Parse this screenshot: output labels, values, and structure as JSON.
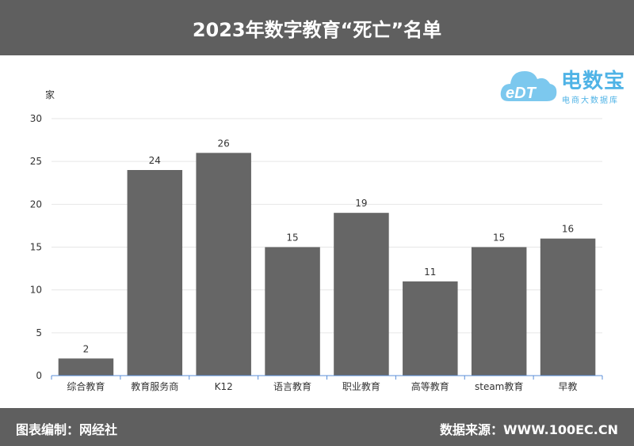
{
  "header": {
    "title": "2023年数字教育“死亡”名单"
  },
  "logo": {
    "name": "电数宝",
    "subtitle": "电商大数据库",
    "mark": "eDT"
  },
  "footer": {
    "left": "图表编制：网经社",
    "right": "数据来源：WWW.100EC.CN"
  },
  "colors": {
    "bar": "#666666",
    "header": "#5f5f5f",
    "logo": "#4fb3e6",
    "axis": "#5b8fd8"
  },
  "chart_data": {
    "type": "bar",
    "title": "2023年数字教育“死亡”名单",
    "ylabel": "家",
    "xlabel": "",
    "categories": [
      "综合教育",
      "教育服务商",
      "K12",
      "语言教育",
      "职业教育",
      "高等教育",
      "steam教育",
      "早教"
    ],
    "values": [
      2,
      24,
      26,
      15,
      19,
      11,
      15,
      16
    ],
    "ylim": [
      0,
      30
    ],
    "yticks": [
      0,
      5,
      10,
      15,
      20,
      25,
      30
    ],
    "grid": true,
    "data_labels": true
  }
}
